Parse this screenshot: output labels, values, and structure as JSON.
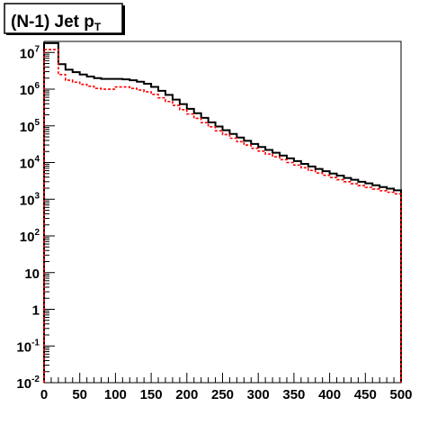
{
  "chart_data": {
    "type": "line",
    "title": {
      "main": "(N-1) Jet p",
      "subscript": "T"
    },
    "x_axis": {
      "range": [
        0,
        500
      ],
      "tick_labels": [
        "0",
        "50",
        "100",
        "150",
        "200",
        "250",
        "300",
        "350",
        "400",
        "450",
        "500"
      ],
      "major_step": 50,
      "minor_step": 10
    },
    "y_axis": {
      "scale": "log",
      "range": [
        0.01,
        20000000
      ],
      "tick_labels": [
        {
          "base": "10",
          "exp": "-2",
          "value": 0.01
        },
        {
          "base": "10",
          "exp": "-1",
          "value": 0.1
        },
        {
          "base": "1",
          "exp": "",
          "value": 1
        },
        {
          "base": "10",
          "exp": "",
          "value": 10
        },
        {
          "base": "10",
          "exp": "2",
          "value": 100
        },
        {
          "base": "10",
          "exp": "3",
          "value": 1000
        },
        {
          "base": "10",
          "exp": "4",
          "value": 10000
        },
        {
          "base": "10",
          "exp": "5",
          "value": 100000
        },
        {
          "base": "10",
          "exp": "6",
          "value": 1000000
        },
        {
          "base": "10",
          "exp": "7",
          "value": 10000000
        }
      ]
    },
    "bin_edges": [
      0,
      10,
      20,
      30,
      40,
      50,
      60,
      70,
      80,
      90,
      100,
      110,
      120,
      130,
      140,
      150,
      160,
      170,
      180,
      190,
      200,
      210,
      220,
      230,
      240,
      250,
      260,
      270,
      280,
      290,
      300,
      310,
      320,
      330,
      340,
      350,
      360,
      370,
      380,
      390,
      400,
      410,
      420,
      430,
      440,
      450,
      460,
      470,
      480,
      490,
      500
    ],
    "series": [
      {
        "color": "#000000",
        "style": "solid",
        "values": [
          18000000,
          18000000,
          4800000,
          3400000,
          2900000,
          2500000,
          2200000,
          2000000,
          1900000,
          1900000,
          1900000,
          1850000,
          1750000,
          1600000,
          1400000,
          1150000,
          900000,
          700000,
          520000,
          390000,
          290000,
          220000,
          165000,
          125000,
          96000,
          76000,
          60000,
          48000,
          39000,
          32000,
          26500,
          22000,
          18500,
          15500,
          13000,
          11000,
          9200,
          7800,
          6700,
          5800,
          5000,
          4400,
          3800,
          3400,
          3000,
          2700,
          2400,
          2150,
          1950,
          1750
        ]
      },
      {
        "color": "#ff0000",
        "style": "dashed",
        "values": [
          12000000,
          12000000,
          2500000,
          1750000,
          1550000,
          1350000,
          1200000,
          1050000,
          1000000,
          1000000,
          1150000,
          1150000,
          1050000,
          950000,
          850000,
          720000,
          580000,
          460000,
          360000,
          275000,
          210000,
          160000,
          122000,
          94000,
          73000,
          58000,
          46000,
          37000,
          30000,
          24500,
          20500,
          17000,
          14300,
          12000,
          10000,
          8500,
          7200,
          6100,
          5200,
          4500,
          3900,
          3400,
          3000,
          2650,
          2350,
          2100,
          1900,
          1700,
          1550,
          1400
        ]
      }
    ]
  }
}
